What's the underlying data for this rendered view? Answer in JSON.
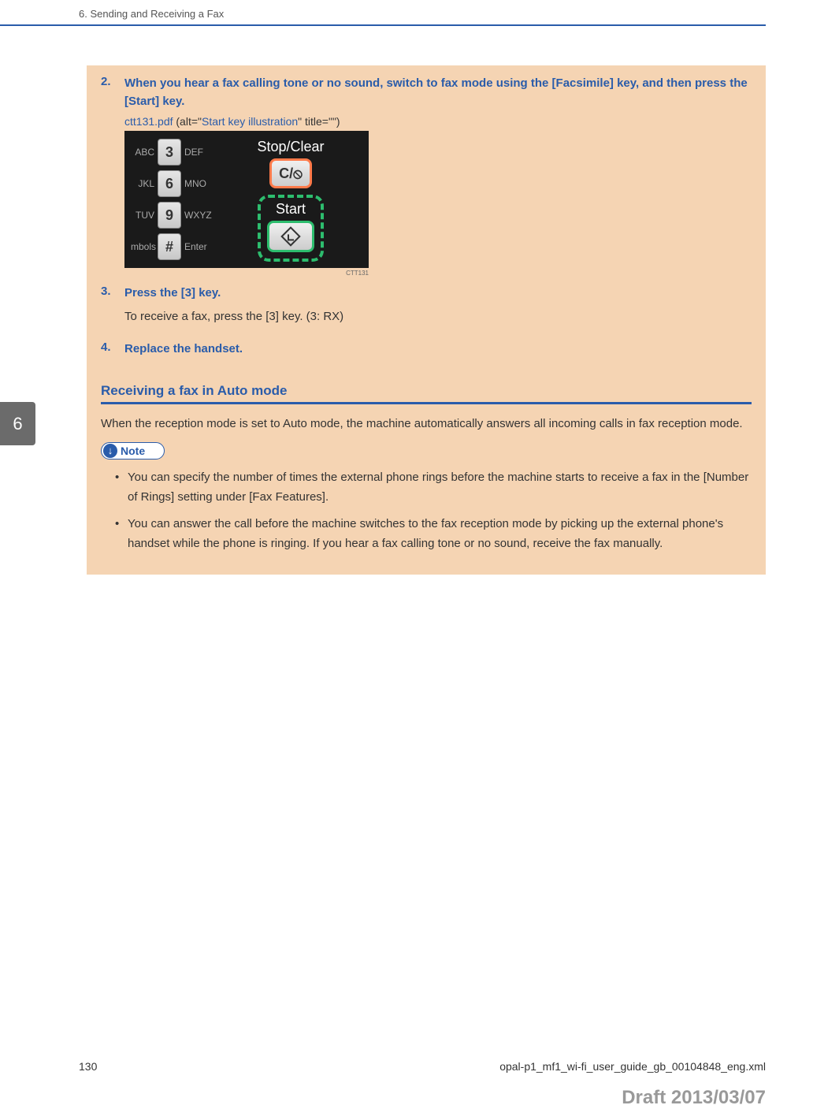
{
  "header": {
    "chapter_title": "6. Sending and Receiving a Fax",
    "chapter_tab": "6"
  },
  "steps": {
    "s2": {
      "num": "2.",
      "title": "When you hear a fax calling tone or no sound, switch to fax mode using the [Facsimile] key, and then press the [Start] key.",
      "file_link": "ctt131.pdf",
      "alt_prefix": " (alt=\"",
      "alt_text": "Start key illustration",
      "alt_suffix": "\" title=\"\")"
    },
    "s3": {
      "num": "3.",
      "title": "Press the [3] key.",
      "text": "To receive a fax, press the [3] key. (3: RX)"
    },
    "s4": {
      "num": "4.",
      "title": "Replace the handset."
    }
  },
  "illustration": {
    "rows": [
      {
        "left": "ABC",
        "key": "3",
        "right": "DEF"
      },
      {
        "left": "JKL",
        "key": "6",
        "right": "MNO"
      },
      {
        "left": "TUV",
        "key": "9",
        "right": "WXYZ"
      },
      {
        "left": "mbols",
        "key": "#",
        "right": "Enter"
      }
    ],
    "stop_clear_label": "Stop/Clear",
    "stop_clear_text": "C/⦸",
    "start_label": "Start",
    "code": "CTT131"
  },
  "section": {
    "heading": "Receiving a fax in Auto mode",
    "body": "When the reception mode is set to Auto mode, the machine automatically answers all incoming calls in fax reception mode.",
    "note_label": "Note",
    "bullets": [
      "You can specify the number of times the external phone rings before the machine starts to receive a fax in the [Number of Rings] setting under [Fax Features].",
      "You can answer the call before the machine switches to the fax reception mode by picking up the external phone's handset while the phone is ringing. If you hear a fax calling tone or no sound, receive the fax manually."
    ]
  },
  "footer": {
    "page": "130",
    "filename": "opal-p1_mf1_wi-fi_user_guide_gb_00104848_eng.xml",
    "draft": "Draft 2013/03/07"
  },
  "colors": {
    "accent": "#2a5caa",
    "block_bg": "#f5d4b3",
    "tab_bg": "#6b6b6b",
    "green": "#2dbd6e",
    "orange": "#ff7a4a",
    "draft": "#999999"
  }
}
